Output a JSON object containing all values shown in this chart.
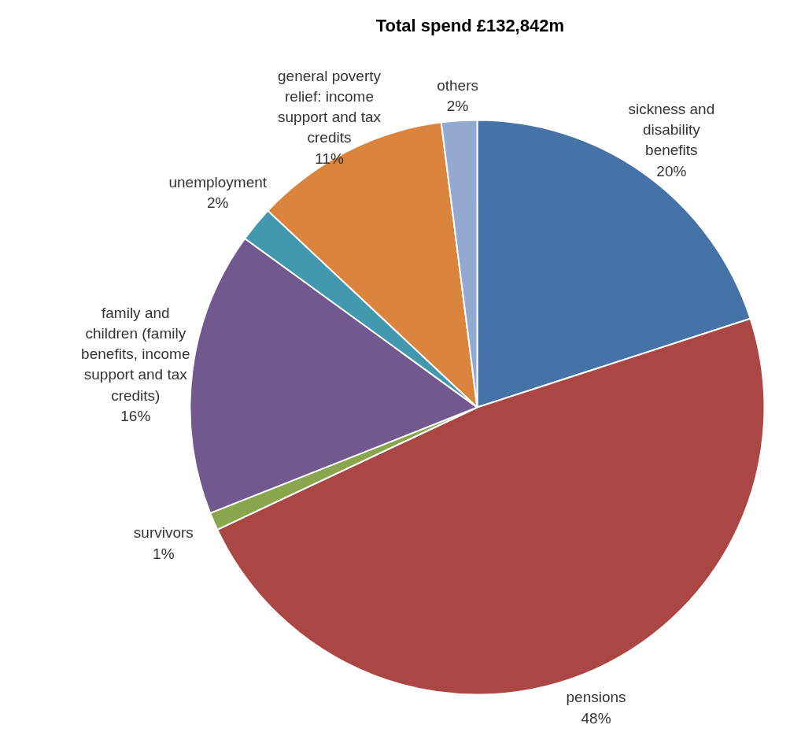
{
  "chart_data": {
    "type": "pie",
    "title": "Total spend £132,842m",
    "categories": [
      "sickness and disability benefits",
      "pensions",
      "survivors",
      "family and children (family benefits, income support and tax credits)",
      "unemployment",
      "general poverty relief: income support and tax credits",
      "others"
    ],
    "values": [
      20,
      48,
      1,
      16,
      2,
      11,
      2
    ],
    "value_labels": [
      "20%",
      "48%",
      "1%",
      "16%",
      "2%",
      "11%",
      "2%"
    ],
    "colors": [
      "#4572a7",
      "#aa4643",
      "#89a54e",
      "#71588f",
      "#4198af",
      "#db843d",
      "#93a9cf"
    ]
  }
}
